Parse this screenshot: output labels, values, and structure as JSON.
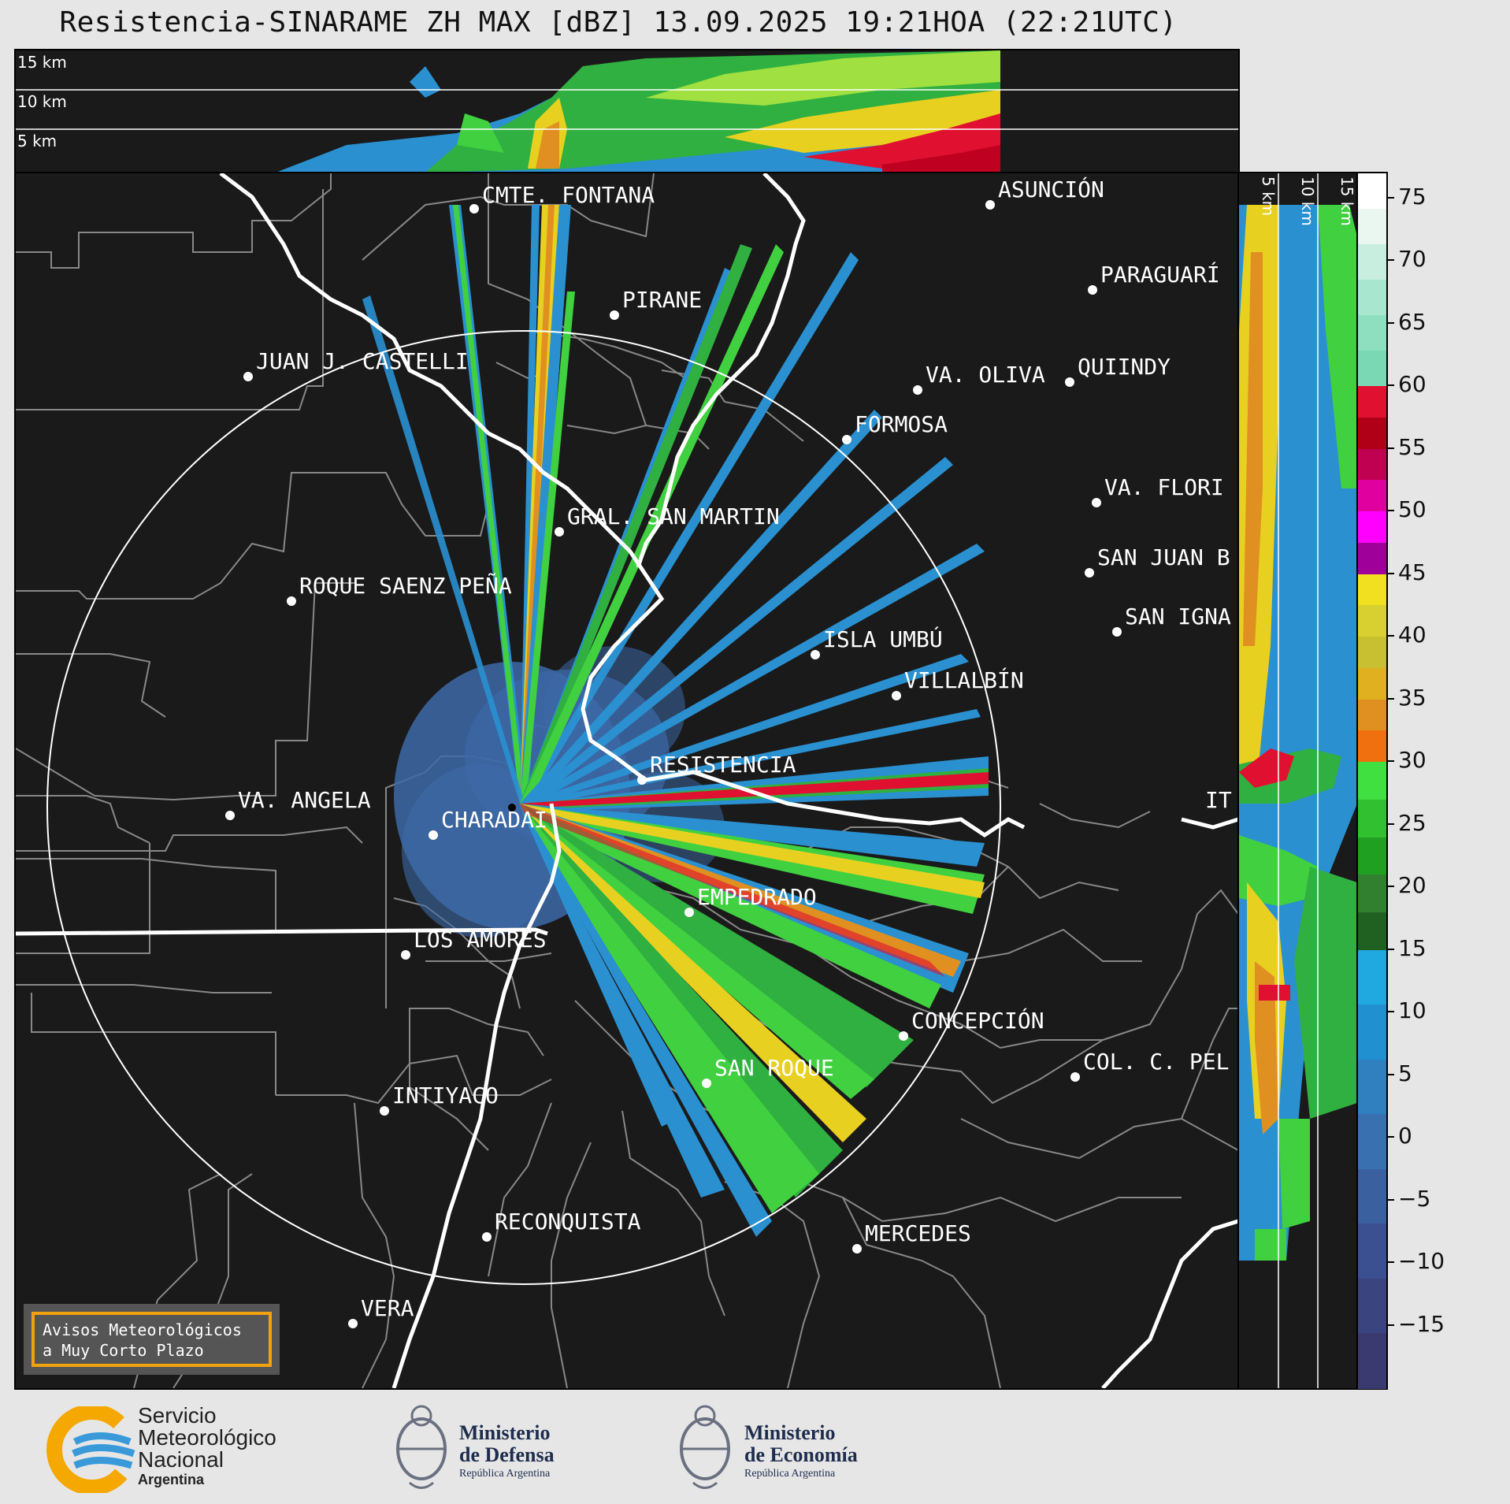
{
  "title": "Resistencia-SINARAME ZH MAX [dBZ] 13.09.2025 19:21HOA (22:21UTC)",
  "top_panel": {
    "altitude_labels": [
      "15 km",
      "10 km",
      "5 km"
    ]
  },
  "side_panel": {
    "altitude_labels": [
      "5 km",
      "10 km",
      "15 km"
    ]
  },
  "colorbar": {
    "ticks": [
      "75",
      "70",
      "65",
      "60",
      "55",
      "50",
      "45",
      "40",
      "35",
      "30",
      "25",
      "20",
      "15",
      "10",
      "5",
      "0",
      "−5",
      "−10",
      "−15"
    ],
    "range": [
      -20,
      77
    ],
    "stops": [
      {
        "from": 60,
        "to": 77,
        "colors": [
          "#ffffff",
          "#eaf6f0",
          "#c8eee0",
          "#a8e6d0",
          "#8edfc0",
          "#7ad8b4"
        ]
      },
      {
        "from": 45,
        "to": 60,
        "colors": [
          "#e01030",
          "#b00018",
          "#c00050",
          "#e000a0",
          "#ff00ff",
          "#a0009a"
        ]
      },
      {
        "from": 30,
        "to": 45,
        "colors": [
          "#f0e020",
          "#d8d030",
          "#c8c030",
          "#e0b020",
          "#e09020",
          "#f07010"
        ]
      },
      {
        "from": 15,
        "to": 30,
        "colors": [
          "#40e040",
          "#30c030",
          "#20a020",
          "#308030",
          "#206020"
        ]
      },
      {
        "from": -20,
        "to": 15,
        "colors": [
          "#20a8e0",
          "#2090d0",
          "#3080c0",
          "#3870b0",
          "#3a60a0",
          "#3a5090",
          "#3a4580",
          "#3a3a70"
        ]
      }
    ]
  },
  "cities": [
    {
      "name": "CMTE. FONTANA"
    },
    {
      "name": "ASUNCIÓN"
    },
    {
      "name": "PARAGUARÍ"
    },
    {
      "name": "PIRANE"
    },
    {
      "name": "JUAN J. CASTELLI"
    },
    {
      "name": "VA. OLIVA"
    },
    {
      "name": "QUIINDY"
    },
    {
      "name": "FORMOSA"
    },
    {
      "name": "VA. FLORI"
    },
    {
      "name": "GRAL. SAN MARTIN"
    },
    {
      "name": "SAN JUAN B"
    },
    {
      "name": "ROQUE SAENZ PEÑA"
    },
    {
      "name": "SAN IGNA"
    },
    {
      "name": "ISLA UMBÚ"
    },
    {
      "name": "VILLALBÍN"
    },
    {
      "name": "RESISTENCIA"
    },
    {
      "name": "IT"
    },
    {
      "name": "VA. ANGELA"
    },
    {
      "name": "CHARADAI"
    },
    {
      "name": "EMPEDRADO"
    },
    {
      "name": "LOS AMORES"
    },
    {
      "name": "CONCEPCIÓN"
    },
    {
      "name": "COL. C. PEL"
    },
    {
      "name": "SAN ROQUE"
    },
    {
      "name": "INTIYACO"
    },
    {
      "name": "RECONQUISTA"
    },
    {
      "name": "MERCEDES"
    },
    {
      "name": "VERA"
    }
  ],
  "notice": {
    "line1": "Avisos Meteorológicos",
    "line2": "a Muy Corto Plazo"
  },
  "footer": {
    "smn": {
      "line1": "Servicio",
      "line2": "Meteorológico",
      "line3": "Nacional",
      "line4": "Argentina"
    },
    "defensa": {
      "line1": "Ministerio",
      "line2": "de Defensa",
      "line3": "República Argentina"
    },
    "economia": {
      "line1": "Ministerio",
      "line2": "de Economía",
      "line3": "República Argentina"
    }
  }
}
